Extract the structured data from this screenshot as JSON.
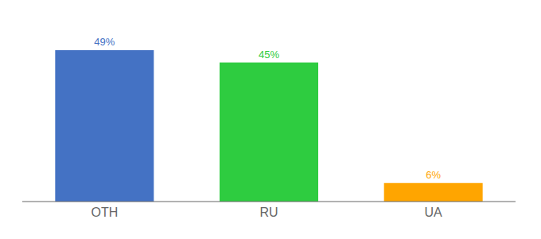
{
  "chart_data": {
    "type": "bar",
    "categories": [
      "OTH",
      "RU",
      "UA"
    ],
    "values": [
      49,
      45,
      6
    ],
    "value_labels": [
      "49%",
      "45%",
      "6%"
    ],
    "colors": [
      "#4472C4",
      "#2ECC40",
      "#FFA500"
    ],
    "ylim": [
      0,
      57
    ],
    "data_labels": true,
    "tick_labels": "x",
    "grid": false
  }
}
